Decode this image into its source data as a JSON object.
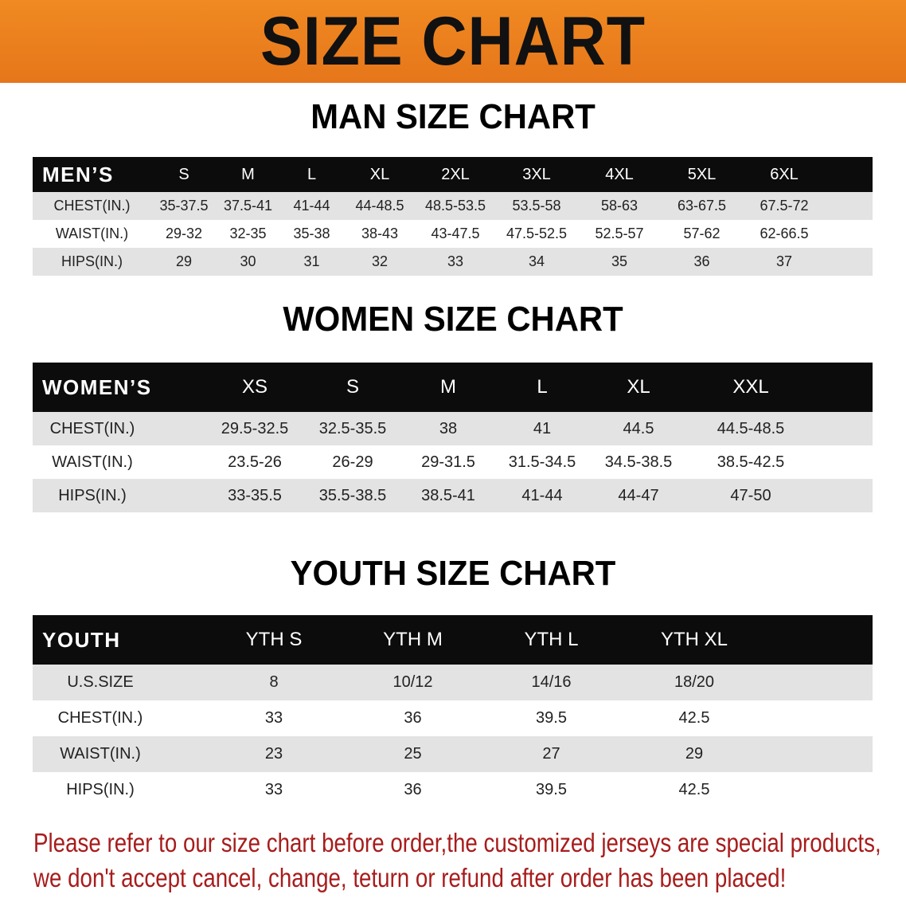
{
  "title": "SIZE CHART",
  "men": {
    "heading": "MAN SIZE CHART",
    "header_label": "MEN’S",
    "sizes": [
      "S",
      "M",
      "L",
      "XL",
      "2XL",
      "3XL",
      "4XL",
      "5XL",
      "6XL"
    ],
    "rows": [
      {
        "label": "CHEST(IN.)",
        "values": [
          "35-37.5",
          "37.5-41",
          "41-44",
          "44-48.5",
          "48.5-53.5",
          "53.5-58",
          "58-63",
          "63-67.5",
          "67.5-72"
        ]
      },
      {
        "label": "WAIST(IN.)",
        "values": [
          "29-32",
          "32-35",
          "35-38",
          "38-43",
          "43-47.5",
          "47.5-52.5",
          "52.5-57",
          "57-62",
          "62-66.5"
        ]
      },
      {
        "label": "HIPS(IN.)",
        "values": [
          "29",
          "30",
          "31",
          "32",
          "33",
          "34",
          "35",
          "36",
          "37"
        ]
      }
    ]
  },
  "women": {
    "heading": "WOMEN SIZE CHART",
    "header_label": "WOMEN’S",
    "sizes": [
      "XS",
      "S",
      "M",
      "L",
      "XL",
      "XXL"
    ],
    "rows": [
      {
        "label": "CHEST(IN.)",
        "values": [
          "29.5-32.5",
          "32.5-35.5",
          "38",
          "41",
          "44.5",
          "44.5-48.5"
        ]
      },
      {
        "label": "WAIST(IN.)",
        "values": [
          "23.5-26",
          "26-29",
          "29-31.5",
          "31.5-34.5",
          "34.5-38.5",
          "38.5-42.5"
        ]
      },
      {
        "label": "HIPS(IN.)",
        "values": [
          "33-35.5",
          "35.5-38.5",
          "38.5-41",
          "41-44",
          "44-47",
          "47-50"
        ]
      }
    ]
  },
  "youth": {
    "heading": "YOUTH SIZE CHART",
    "header_label": "YOUTH",
    "sizes": [
      "YTH S",
      "YTH M",
      "YTH L",
      "YTH XL"
    ],
    "rows": [
      {
        "label": "U.S.SIZE",
        "values": [
          "8",
          "10/12",
          "14/16",
          "18/20"
        ]
      },
      {
        "label": "CHEST(IN.)",
        "values": [
          "33",
          "36",
          "39.5",
          "42.5"
        ]
      },
      {
        "label": "WAIST(IN.)",
        "values": [
          "23",
          "25",
          "27",
          "29"
        ]
      },
      {
        "label": "HIPS(IN.)",
        "values": [
          "33",
          "36",
          "39.5",
          "42.5"
        ]
      }
    ]
  },
  "note": {
    "line1": "Please refer to our size chart before order,the customized jerseys are special products,",
    "line2": "we don't accept cancel, change, teturn or refund after order has been placed!"
  },
  "colors": {
    "banner": "#ec8020",
    "header_bg": "#0c0c0c",
    "row_gray": "#e3e3e3",
    "note": "#a81c1c"
  }
}
